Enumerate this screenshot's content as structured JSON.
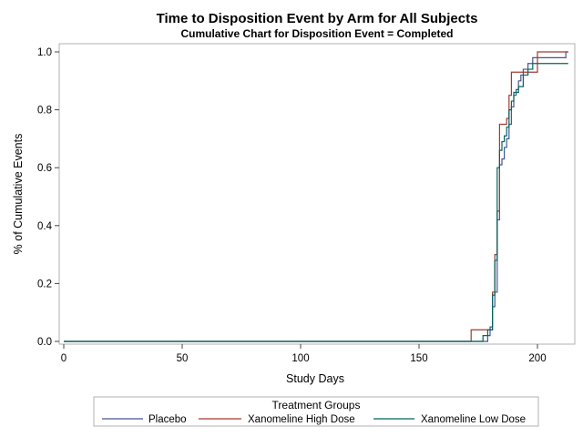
{
  "chart_data": {
    "type": "line",
    "step": true,
    "title": "Time to Disposition Event by Arm for All Subjects",
    "subtitle": "Cumulative Chart for Disposition Event = Completed",
    "xlabel": "Study Days",
    "ylabel": "% of Cumulative Events",
    "xlim": [
      0,
      215
    ],
    "ylim": [
      0,
      1.0
    ],
    "xticks": [
      "0",
      "50",
      "100",
      "150",
      "200"
    ],
    "xtick_values": [
      0,
      50,
      100,
      150,
      200
    ],
    "yticks": [
      "0.0",
      "0.2",
      "0.4",
      "0.6",
      "0.8",
      "1.0"
    ],
    "ytick_values": [
      0,
      0.2,
      0.4,
      0.6,
      0.8,
      1.0
    ],
    "grid": false,
    "legend": {
      "title": "Treatment Groups",
      "placement": "bottom"
    },
    "series": [
      {
        "name": "Placebo",
        "color": "#445694",
        "x": [
          0,
          177,
          179,
          180,
          181,
          182,
          183,
          184,
          185,
          186,
          187,
          188,
          189,
          190,
          191,
          192,
          193,
          194,
          196,
          198,
          212,
          213
        ],
        "y": [
          0,
          0.0,
          0.02,
          0.05,
          0.12,
          0.17,
          0.42,
          0.61,
          0.63,
          0.67,
          0.7,
          0.75,
          0.81,
          0.85,
          0.87,
          0.9,
          0.92,
          0.94,
          0.96,
          0.98,
          1.0,
          1.0
        ]
      },
      {
        "name": "Xanomeline High Dose",
        "color": "#A23A2E",
        "x": [
          0,
          172,
          177,
          180,
          181,
          182,
          183,
          184,
          186,
          187,
          188,
          189,
          194,
          196,
          200,
          213
        ],
        "y": [
          0,
          0.04,
          0.04,
          0.04,
          0.17,
          0.3,
          0.45,
          0.75,
          0.75,
          0.77,
          0.85,
          0.93,
          0.93,
          0.93,
          1.0,
          1.0
        ]
      },
      {
        "name": "Xanomeline Low Dose",
        "color": "#01665E",
        "x": [
          0,
          174,
          177,
          179,
          181,
          182,
          183,
          184,
          185,
          186,
          187,
          188,
          189,
          190,
          192,
          194,
          196,
          198,
          213
        ],
        "y": [
          0,
          0.0,
          0.02,
          0.04,
          0.16,
          0.28,
          0.6,
          0.66,
          0.69,
          0.71,
          0.74,
          0.8,
          0.83,
          0.86,
          0.88,
          0.92,
          0.94,
          0.96,
          0.96
        ]
      }
    ]
  }
}
